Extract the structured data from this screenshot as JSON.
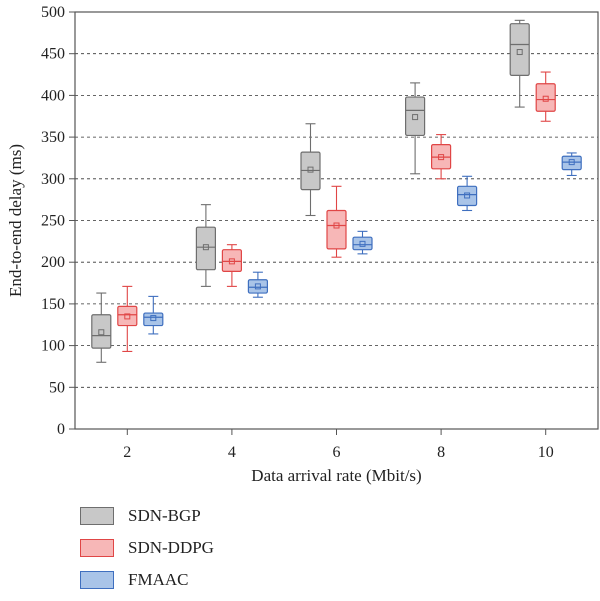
{
  "chart_data": {
    "type": "box",
    "xlabel": "Data arrival rate (Mbit/s)",
    "ylabel": "End-to-end delay (ms)",
    "ylim": [
      0,
      500
    ],
    "yticks": [
      0,
      50,
      100,
      150,
      200,
      250,
      300,
      350,
      400,
      450,
      500
    ],
    "categories": [
      "2",
      "4",
      "6",
      "8",
      "10"
    ],
    "grid": "horizontal-dashed",
    "legend_position": "below-left",
    "series": [
      {
        "name": "SDN-BGP",
        "fill": "#c8c8c8",
        "stroke": "#6e6e6e",
        "boxes": [
          {
            "min": 80,
            "q1": 97,
            "median": 112,
            "q3": 137,
            "max": 163,
            "mean": 116
          },
          {
            "min": 171,
            "q1": 191,
            "median": 218,
            "q3": 242,
            "max": 269,
            "mean": 218
          },
          {
            "min": 256,
            "q1": 287,
            "median": 310,
            "q3": 332,
            "max": 366,
            "mean": 311
          },
          {
            "min": 306,
            "q1": 352,
            "median": 382,
            "q3": 398,
            "max": 415,
            "mean": 374
          },
          {
            "min": 386,
            "q1": 424,
            "median": 461,
            "q3": 486,
            "max": 490,
            "mean": 452
          }
        ]
      },
      {
        "name": "SDN-DDPG",
        "fill": "#f7b7b7",
        "stroke": "#e04646",
        "boxes": [
          {
            "min": 93,
            "q1": 124,
            "median": 137,
            "q3": 147,
            "max": 171,
            "mean": 135
          },
          {
            "min": 171,
            "q1": 189,
            "median": 201,
            "q3": 215,
            "max": 221,
            "mean": 201
          },
          {
            "min": 206,
            "q1": 216,
            "median": 244,
            "q3": 262,
            "max": 291,
            "mean": 244
          },
          {
            "min": 300,
            "q1": 312,
            "median": 326,
            "q3": 341,
            "max": 353,
            "mean": 326
          },
          {
            "min": 369,
            "q1": 381,
            "median": 395,
            "q3": 414,
            "max": 428,
            "mean": 396
          }
        ]
      },
      {
        "name": "FMAAC",
        "fill": "#a9c4e8",
        "stroke": "#3f6fbf",
        "boxes": [
          {
            "min": 114,
            "q1": 124,
            "median": 134,
            "q3": 139,
            "max": 159,
            "mean": 133
          },
          {
            "min": 158,
            "q1": 163,
            "median": 170,
            "q3": 179,
            "max": 188,
            "mean": 171
          },
          {
            "min": 210,
            "q1": 215,
            "median": 221,
            "q3": 230,
            "max": 237,
            "mean": 222
          },
          {
            "min": 262,
            "q1": 268,
            "median": 281,
            "q3": 291,
            "max": 303,
            "mean": 280
          },
          {
            "min": 304,
            "q1": 311,
            "median": 320,
            "q3": 327,
            "max": 331,
            "mean": 320
          }
        ]
      }
    ]
  }
}
